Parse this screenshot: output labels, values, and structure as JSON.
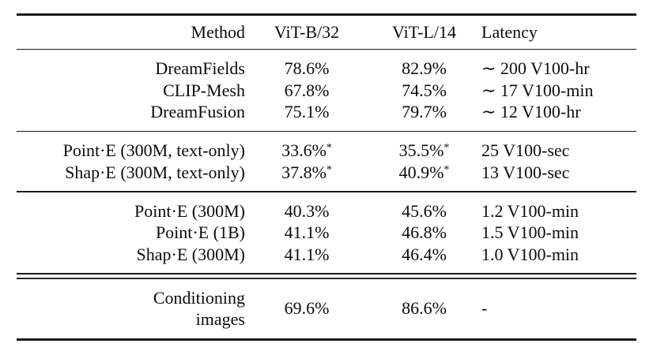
{
  "table": {
    "title": "text-to-3D evaluation table",
    "headers": {
      "method": "Method",
      "vit_b32": "ViT-B/32",
      "vit_l14": "ViT-L/14",
      "latency": "Latency"
    },
    "colors": {
      "text": "#0c0c0c",
      "rule": "#1a1a1a",
      "background": "#ffffff"
    },
    "sections": [
      {
        "name": "optimization-baselines",
        "rows": [
          {
            "method": "DreamFields",
            "b32": "78.6%",
            "l14": "82.9%",
            "latency": "∼ 200 V100-hr"
          },
          {
            "method": "CLIP-Mesh",
            "b32": "67.8%",
            "l14": "74.5%",
            "latency": "∼ 17 V100-min"
          },
          {
            "method": "DreamFusion",
            "b32": "75.1%",
            "l14": "79.7%",
            "latency": "∼ 12 V100-hr"
          }
        ]
      },
      {
        "name": "text-only-models",
        "rows": [
          {
            "method": "Point·E (300M, text-only)",
            "b32": "33.6%",
            "b32_sup": "*",
            "l14": "35.5%",
            "l14_sup": "*",
            "latency": "25 V100-sec"
          },
          {
            "method": "Shap·E (300M, text-only)",
            "b32": "37.8%",
            "b32_sup": "*",
            "l14": "40.9%",
            "l14_sup": "*",
            "latency": "13 V100-sec"
          }
        ]
      },
      {
        "name": "image-conditioned-models",
        "rows": [
          {
            "method": "Point·E (300M)",
            "b32": "40.3%",
            "l14": "45.6%",
            "latency": "1.2 V100-min"
          },
          {
            "method": "Point·E (1B)",
            "b32": "41.1%",
            "l14": "46.8%",
            "latency": "1.5 V100-min"
          },
          {
            "method": "Shap·E (300M)",
            "b32": "41.1%",
            "l14": "46.4%",
            "latency": "1.0 V100-min"
          }
        ]
      },
      {
        "name": "conditioning-images-reference",
        "rows": [
          {
            "method_line1": "Conditioning",
            "method_line2": "images",
            "b32": "69.6%",
            "l14": "86.6%",
            "latency": "-"
          }
        ]
      }
    ]
  }
}
